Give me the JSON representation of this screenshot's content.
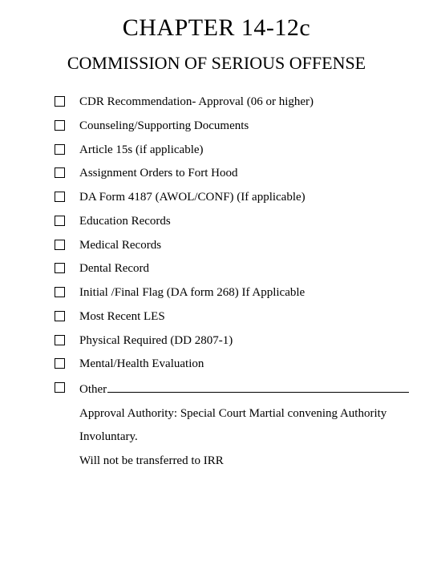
{
  "chapter_title": "CHAPTER 14-12c",
  "subtitle": "COMMISSION OF SERIOUS OFFENSE",
  "checklist": [
    "CDR Recommendation- Approval (06 or higher)",
    "Counseling/Supporting Documents",
    "Article 15s (if applicable)",
    "Assignment Orders to Fort Hood",
    "DA Form 4187 (AWOL/CONF) (If applicable)",
    "Education Records",
    "Medical Records",
    "Dental Record",
    "Initial /Final Flag (DA form 268) If Applicable",
    "Most Recent LES",
    "Physical Required (DD 2807-1)",
    "Mental/Health Evaluation"
  ],
  "other_label": "Other",
  "notes": [
    "Approval Authority:  Special Court Martial convening Authority",
    "Involuntary.",
    "Will not be transferred to IRR"
  ],
  "colors": {
    "background": "#ffffff",
    "text": "#000000",
    "checkbox_border": "#000000",
    "underline": "#000000"
  },
  "typography": {
    "font_family": "Times New Roman",
    "chapter_title_size": 30,
    "subtitle_size": 22,
    "body_size": 15
  }
}
